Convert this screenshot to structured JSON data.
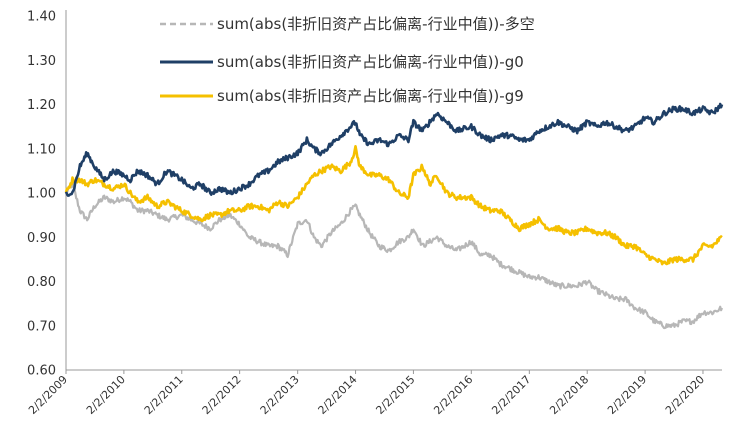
{
  "chart_data": {
    "type": "line",
    "title": "",
    "xlabel": "",
    "ylabel": "",
    "ylim": [
      0.6,
      1.4
    ],
    "yticks": [
      "0.60",
      "0.70",
      "0.80",
      "0.90",
      "1.00",
      "1.10",
      "1.20",
      "1.30",
      "1.40"
    ],
    "xlim": [
      "2009-02-02",
      "2020-06-01"
    ],
    "xticks": [
      "2/2/2009",
      "2/2/2010",
      "2/2/2011",
      "2/2/2012",
      "2/2/2013",
      "2/2/2014",
      "2/2/2015",
      "2/2/2016",
      "2/2/2017",
      "2/2/2018",
      "2/2/2019",
      "2/2/2020"
    ],
    "grid": false,
    "legend_position": "top-center",
    "series": [
      {
        "name": "sum(abs(非折旧资产占比偏离-行业中值))-多空",
        "color": "#b7b7b7",
        "dash": "dashed",
        "x": [
          "2009-02-02",
          "2009-03-15",
          "2009-05-01",
          "2009-06-15",
          "2009-08-01",
          "2009-10-01",
          "2009-12-01",
          "2010-02-02",
          "2010-03-15",
          "2010-05-01",
          "2010-07-01",
          "2010-09-01",
          "2010-11-01",
          "2011-02-02",
          "2011-04-01",
          "2011-06-01",
          "2011-08-01",
          "2011-10-01",
          "2011-12-01",
          "2012-02-02",
          "2012-04-01",
          "2012-06-01",
          "2012-08-01",
          "2012-10-01",
          "2012-12-01",
          "2013-02-02",
          "2013-04-01",
          "2013-05-15",
          "2013-07-01",
          "2013-09-01",
          "2013-11-01",
          "2014-01-01",
          "2014-02-02",
          "2014-03-01",
          "2014-05-01",
          "2014-07-01",
          "2014-09-01",
          "2014-11-01",
          "2015-01-01",
          "2015-02-02",
          "2015-04-01",
          "2015-05-15",
          "2015-07-01",
          "2015-09-01",
          "2015-11-01",
          "2016-02-02",
          "2016-04-01",
          "2016-06-01",
          "2016-08-01",
          "2016-10-01",
          "2016-12-01",
          "2017-02-02",
          "2017-04-01",
          "2017-06-01",
          "2017-08-01",
          "2017-10-01",
          "2017-12-01",
          "2018-02-02",
          "2018-04-01",
          "2018-06-01",
          "2018-08-01",
          "2018-10-01",
          "2018-12-01",
          "2019-02-02",
          "2019-04-01",
          "2019-06-01",
          "2019-08-01",
          "2019-10-01",
          "2019-12-01",
          "2020-02-02",
          "2020-04-01",
          "2020-06-01"
        ],
        "y": [
          1.0,
          1.02,
          0.96,
          0.94,
          0.97,
          0.99,
          0.98,
          0.99,
          0.98,
          0.96,
          0.96,
          0.95,
          0.94,
          0.95,
          0.94,
          0.93,
          0.92,
          0.94,
          0.95,
          0.93,
          0.9,
          0.89,
          0.88,
          0.88,
          0.86,
          0.93,
          0.94,
          0.9,
          0.88,
          0.91,
          0.93,
          0.96,
          0.97,
          0.95,
          0.91,
          0.88,
          0.87,
          0.89,
          0.9,
          0.92,
          0.88,
          0.89,
          0.9,
          0.88,
          0.87,
          0.89,
          0.86,
          0.86,
          0.84,
          0.83,
          0.82,
          0.81,
          0.81,
          0.8,
          0.79,
          0.79,
          0.79,
          0.8,
          0.78,
          0.77,
          0.76,
          0.76,
          0.74,
          0.73,
          0.71,
          0.7,
          0.7,
          0.71,
          0.71,
          0.73,
          0.73,
          0.74
        ]
      },
      {
        "name": "sum(abs(非折旧资产占比偏离-行业中值))-g0",
        "color": "#1f3f66",
        "dash": "solid",
        "x": [
          "2009-02-02",
          "2009-03-15",
          "2009-05-01",
          "2009-06-15",
          "2009-08-01",
          "2009-10-01",
          "2009-12-01",
          "2010-02-02",
          "2010-03-15",
          "2010-05-01",
          "2010-07-01",
          "2010-09-01",
          "2010-11-01",
          "2011-02-02",
          "2011-04-01",
          "2011-06-01",
          "2011-08-01",
          "2011-10-01",
          "2011-12-01",
          "2012-02-02",
          "2012-04-01",
          "2012-06-01",
          "2012-08-01",
          "2012-10-01",
          "2012-12-01",
          "2013-02-02",
          "2013-04-01",
          "2013-05-15",
          "2013-07-01",
          "2013-09-01",
          "2013-11-01",
          "2014-01-01",
          "2014-02-02",
          "2014-03-01",
          "2014-05-01",
          "2014-07-01",
          "2014-09-01",
          "2014-11-01",
          "2015-01-01",
          "2015-02-02",
          "2015-04-01",
          "2015-05-15",
          "2015-07-01",
          "2015-09-01",
          "2015-11-01",
          "2016-02-02",
          "2016-04-01",
          "2016-06-01",
          "2016-08-01",
          "2016-10-01",
          "2016-12-01",
          "2017-02-02",
          "2017-04-01",
          "2017-06-01",
          "2017-08-01",
          "2017-10-01",
          "2017-12-01",
          "2018-02-02",
          "2018-04-01",
          "2018-06-01",
          "2018-08-01",
          "2018-10-01",
          "2018-12-01",
          "2019-02-02",
          "2019-04-01",
          "2019-06-01",
          "2019-08-01",
          "2019-10-01",
          "2019-12-01",
          "2020-02-02",
          "2020-04-01",
          "2020-06-01"
        ],
        "y": [
          1.0,
          1.0,
          1.06,
          1.09,
          1.06,
          1.03,
          1.05,
          1.04,
          1.03,
          1.05,
          1.04,
          1.02,
          1.05,
          1.03,
          1.01,
          1.02,
          1.0,
          1.01,
          1.0,
          1.01,
          1.02,
          1.04,
          1.05,
          1.07,
          1.08,
          1.09,
          1.12,
          1.1,
          1.09,
          1.11,
          1.13,
          1.15,
          1.16,
          1.13,
          1.11,
          1.12,
          1.11,
          1.13,
          1.12,
          1.16,
          1.14,
          1.16,
          1.18,
          1.16,
          1.14,
          1.15,
          1.13,
          1.12,
          1.13,
          1.13,
          1.12,
          1.12,
          1.14,
          1.15,
          1.16,
          1.15,
          1.14,
          1.16,
          1.15,
          1.16,
          1.15,
          1.14,
          1.15,
          1.17,
          1.16,
          1.18,
          1.19,
          1.19,
          1.18,
          1.19,
          1.18,
          1.2
        ]
      },
      {
        "name": "sum(abs(非折旧资产占比偏离-行业中值))-g9",
        "color": "#f5c000",
        "dash": "solid",
        "x": [
          "2009-02-02",
          "2009-03-15",
          "2009-05-01",
          "2009-06-15",
          "2009-08-01",
          "2009-10-01",
          "2009-12-01",
          "2010-02-02",
          "2010-03-15",
          "2010-05-01",
          "2010-07-01",
          "2010-09-01",
          "2010-11-01",
          "2011-02-02",
          "2011-04-01",
          "2011-06-01",
          "2011-08-01",
          "2011-10-01",
          "2011-12-01",
          "2012-02-02",
          "2012-04-01",
          "2012-06-01",
          "2012-08-01",
          "2012-10-01",
          "2012-12-01",
          "2013-02-02",
          "2013-04-01",
          "2013-05-15",
          "2013-07-01",
          "2013-09-01",
          "2013-11-01",
          "2014-01-01",
          "2014-02-02",
          "2014-03-01",
          "2014-05-01",
          "2014-07-01",
          "2014-09-01",
          "2014-11-01",
          "2015-01-01",
          "2015-02-02",
          "2015-04-01",
          "2015-05-15",
          "2015-07-01",
          "2015-09-01",
          "2015-11-01",
          "2016-02-02",
          "2016-04-01",
          "2016-06-01",
          "2016-08-01",
          "2016-10-01",
          "2016-12-01",
          "2017-02-02",
          "2017-04-01",
          "2017-06-01",
          "2017-08-01",
          "2017-10-01",
          "2017-12-01",
          "2018-02-02",
          "2018-04-01",
          "2018-06-01",
          "2018-08-01",
          "2018-10-01",
          "2018-12-01",
          "2019-02-02",
          "2019-04-01",
          "2019-06-01",
          "2019-08-01",
          "2019-10-01",
          "2019-12-01",
          "2020-02-02",
          "2020-04-01",
          "2020-06-01"
        ],
        "y": [
          1.0,
          1.03,
          1.03,
          1.02,
          1.03,
          1.02,
          1.01,
          1.02,
          1.0,
          0.98,
          0.99,
          0.97,
          0.98,
          0.96,
          0.95,
          0.94,
          0.95,
          0.95,
          0.96,
          0.96,
          0.97,
          0.97,
          0.96,
          0.98,
          0.97,
          0.99,
          1.02,
          1.04,
          1.05,
          1.06,
          1.05,
          1.07,
          1.1,
          1.06,
          1.04,
          1.04,
          1.03,
          1.0,
          0.99,
          1.04,
          1.06,
          1.02,
          1.04,
          1.0,
          0.99,
          0.99,
          0.97,
          0.96,
          0.96,
          0.94,
          0.92,
          0.93,
          0.94,
          0.92,
          0.92,
          0.91,
          0.91,
          0.92,
          0.91,
          0.91,
          0.9,
          0.88,
          0.88,
          0.86,
          0.85,
          0.84,
          0.85,
          0.85,
          0.85,
          0.88,
          0.88,
          0.9
        ]
      }
    ]
  }
}
